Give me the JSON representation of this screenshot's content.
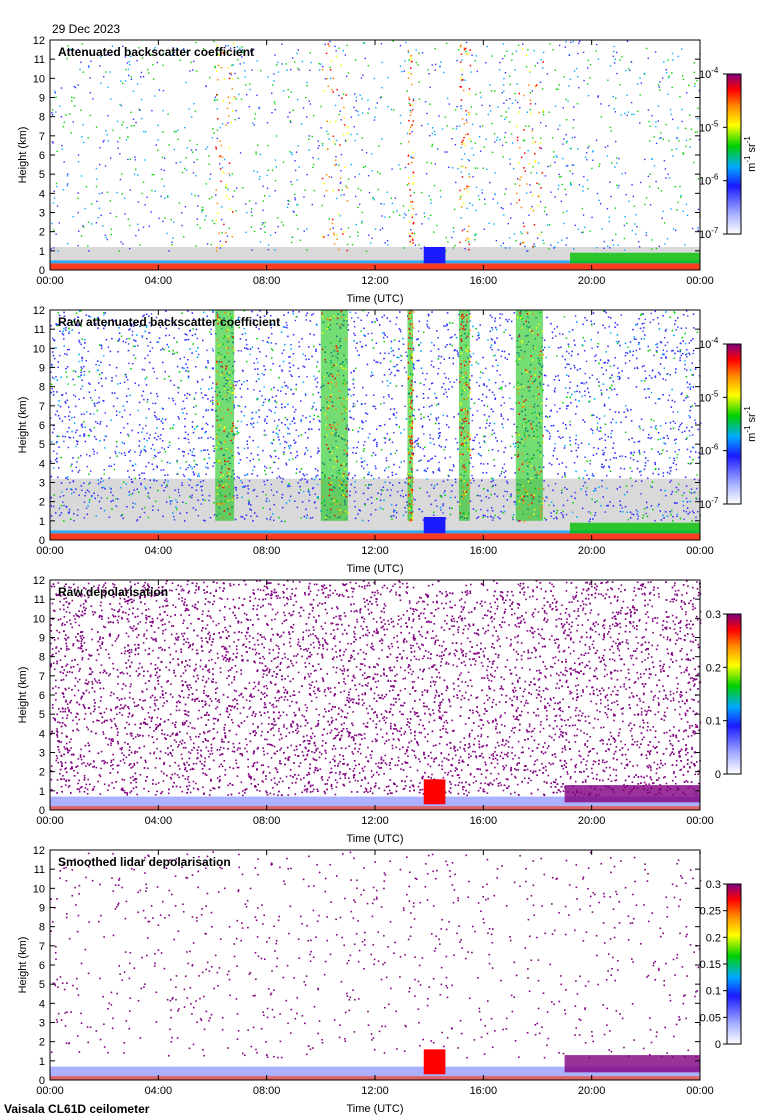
{
  "date": "29 Dec 2023",
  "footer": "Vaisala CL61D ceilometer",
  "chart_data": [
    {
      "type": "heatmap",
      "title": "Attenuated backscatter coefficient",
      "xlabel": "Time (UTC)",
      "ylabel": "Height (km)",
      "x_ticks": [
        "00:00",
        "04:00",
        "08:00",
        "12:00",
        "16:00",
        "20:00",
        "00:00"
      ],
      "xlim_hours": [
        0,
        24
      ],
      "y_ticks": [
        0,
        1,
        2,
        3,
        4,
        5,
        6,
        7,
        8,
        9,
        10,
        11,
        12
      ],
      "ylim_km": [
        0,
        12
      ],
      "colorbar": {
        "scale": "log",
        "range": [
          1e-07,
          0.0001
        ],
        "tick_labels": [
          {
            "base": "10",
            "exp": "-4"
          },
          {
            "base": "10",
            "exp": "-5"
          },
          {
            "base": "10",
            "exp": "-6"
          },
          {
            "base": "10",
            "exp": "-7"
          }
        ],
        "unit": {
          "a": "m",
          "ae": "-1",
          "b": " sr",
          "be": "-1"
        }
      },
      "features": {
        "precip_bands_hours": [
          [
            6.1,
            6.8
          ],
          [
            10.0,
            11.0
          ],
          [
            13.2,
            13.4
          ],
          [
            15.1,
            15.5
          ],
          [
            17.2,
            18.2
          ]
        ],
        "low_aerosol_layer_km": [
          0,
          0.5
        ],
        "low_cloud_hours": [
          [
            13.8,
            14.6
          ],
          [
            19.0,
            24.0
          ]
        ]
      }
    },
    {
      "type": "heatmap",
      "title": "Raw attenuated backscatter coefficient",
      "xlabel": "Time (UTC)",
      "ylabel": "Height (km)",
      "x_ticks": [
        "00:00",
        "04:00",
        "08:00",
        "12:00",
        "16:00",
        "20:00",
        "00:00"
      ],
      "xlim_hours": [
        0,
        24
      ],
      "y_ticks": [
        0,
        1,
        2,
        3,
        4,
        5,
        6,
        7,
        8,
        9,
        10,
        11,
        12
      ],
      "ylim_km": [
        0,
        12
      ],
      "colorbar": {
        "scale": "log",
        "range": [
          1e-07,
          0.0001
        ],
        "tick_labels": [
          {
            "base": "10",
            "exp": "-4"
          },
          {
            "base": "10",
            "exp": "-5"
          },
          {
            "base": "10",
            "exp": "-6"
          },
          {
            "base": "10",
            "exp": "-7"
          }
        ],
        "unit": {
          "a": "m",
          "ae": "-1",
          "b": " sr",
          "be": "-1"
        }
      },
      "features": {
        "precip_bands_hours": [
          [
            6.1,
            6.8
          ],
          [
            10.0,
            11.0
          ],
          [
            13.2,
            13.4
          ],
          [
            15.1,
            15.5
          ],
          [
            17.2,
            18.2
          ]
        ]
      }
    },
    {
      "type": "heatmap",
      "title": "Raw depolarisation",
      "xlabel": "Time (UTC)",
      "ylabel": "Height (km)",
      "x_ticks": [
        "00:00",
        "04:00",
        "08:00",
        "12:00",
        "16:00",
        "20:00",
        "00:00"
      ],
      "xlim_hours": [
        0,
        24
      ],
      "y_ticks": [
        0,
        1,
        2,
        3,
        4,
        5,
        6,
        7,
        8,
        9,
        10,
        11,
        12
      ],
      "ylim_km": [
        0,
        12
      ],
      "colorbar": {
        "scale": "linear",
        "range": [
          0,
          0.3
        ],
        "tick_labels": [
          "0.3",
          "0.2",
          "0.1",
          "0"
        ],
        "tick_values": [
          0.3,
          0.2,
          0.1,
          0
        ]
      }
    },
    {
      "type": "heatmap",
      "title": "Smoothed lidar depolarisation",
      "xlabel": "Time (UTC)",
      "ylabel": "Height (km)",
      "x_ticks": [
        "00:00",
        "04:00",
        "08:00",
        "12:00",
        "16:00",
        "20:00",
        "00:00"
      ],
      "xlim_hours": [
        0,
        24
      ],
      "y_ticks": [
        0,
        1,
        2,
        3,
        4,
        5,
        6,
        7,
        8,
        9,
        10,
        11,
        12
      ],
      "ylim_km": [
        0,
        12
      ],
      "colorbar": {
        "scale": "linear",
        "range": [
          0,
          0.3
        ],
        "tick_labels": [
          "0.3",
          "0.25",
          "0.2",
          "0.15",
          "0.1",
          "0.05",
          "0"
        ],
        "tick_values": [
          0.3,
          0.25,
          0.2,
          0.15,
          0.1,
          0.05,
          0
        ]
      }
    }
  ],
  "colors": {
    "frame": "#000000",
    "background": "#ffffff",
    "noise_gray": "#d9d9d9"
  }
}
